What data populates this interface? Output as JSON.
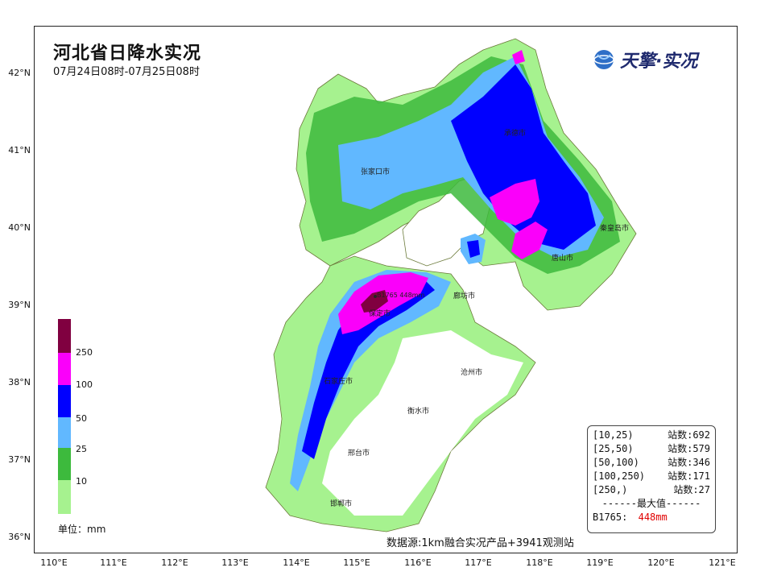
{
  "title": "河北省日降水实况",
  "subtitle": "07月24日08时-07月25日08时",
  "brand": {
    "name": "天擎·实况",
    "icon": "globe-icon"
  },
  "axes": {
    "lat_labels": [
      "42°N",
      "41°N",
      "40°N",
      "39°N",
      "38°N",
      "37°N",
      "36°N"
    ],
    "lon_labels": [
      "110°E",
      "111°E",
      "112°E",
      "113°E",
      "114°E",
      "115°E",
      "116°E",
      "117°E",
      "118°E",
      "119°E",
      "120°E",
      "121°E"
    ]
  },
  "legend": {
    "levels": [
      {
        "label": "10",
        "color": "#a6f28f"
      },
      {
        "label": "25",
        "color": "#3dba3d"
      },
      {
        "label": "50",
        "color": "#61b8ff"
      },
      {
        "label": "100",
        "color": "#0000ff"
      },
      {
        "label": "250",
        "color": "#fa00fa"
      },
      {
        "label": "",
        "color": "#800040"
      }
    ],
    "unit_label": "单位：mm"
  },
  "stats": {
    "rows": [
      {
        "range": "[10,25)",
        "count": "站数:692"
      },
      {
        "range": "[25,50)",
        "count": "站数:579"
      },
      {
        "range": "[50,100)",
        "count": "站数:346"
      },
      {
        "range": "[100,250)",
        "count": "站数:171"
      },
      {
        "range": "[250,)",
        "count": "站数:27"
      }
    ],
    "max_header": "------最大值------",
    "max_station": "B1765:",
    "max_value": "448mm"
  },
  "map_labels": {
    "max_marker": "B1765 448mm",
    "cities": [
      "承德市",
      "张家口市",
      "秦皇岛市",
      "唐山市",
      "廊坊市",
      "保定市",
      "沧州市",
      "石家庄市",
      "衡水市",
      "邢台市",
      "邯郸市"
    ]
  },
  "source": "数据源:1km融合实况产品+3941观测站",
  "colors": {
    "light_green": "#a6f28f",
    "green": "#3dba3d",
    "light_blue": "#61b8ff",
    "blue": "#0000ff",
    "magenta": "#fa00fa",
    "maroon": "#800040",
    "boundary": "#6b7a3a"
  }
}
